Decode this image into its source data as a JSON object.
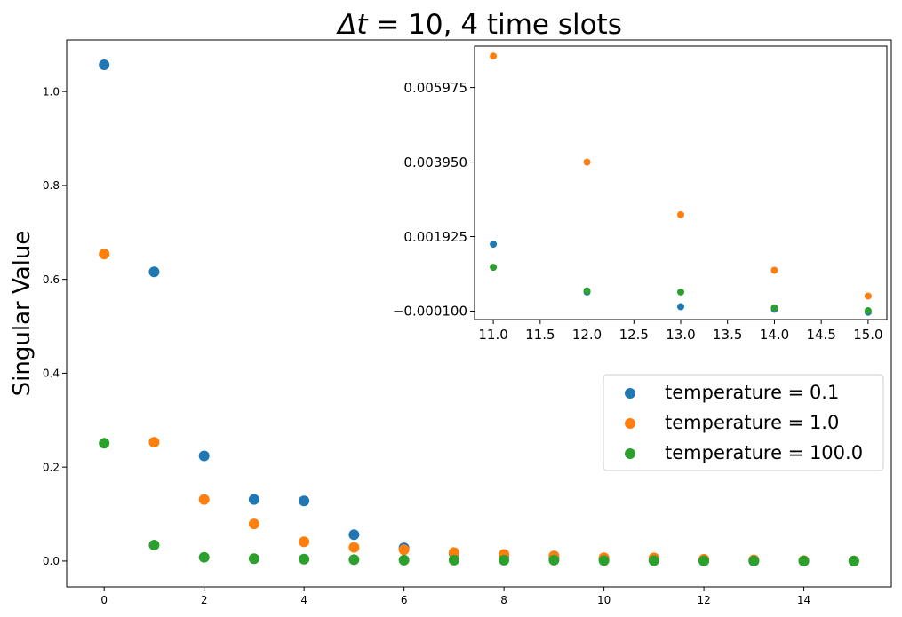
{
  "chart_data": [
    {
      "type": "scatter",
      "title": "Δt = 10, 4 time slots",
      "xlabel": "",
      "ylabel": "Singular Value",
      "xlim": [
        -0.75,
        15.75
      ],
      "ylim": [
        -0.055,
        1.11
      ],
      "x_ticks": [
        0,
        2,
        4,
        6,
        8,
        10,
        12,
        14
      ],
      "y_ticks": [
        0.0,
        0.2,
        0.4,
        0.6,
        0.8,
        1.0
      ],
      "x_tick_labels": [
        "0",
        "2",
        "4",
        "6",
        "8",
        "10",
        "12",
        "14"
      ],
      "y_tick_labels": [
        "0.0",
        "0.2",
        "0.4",
        "0.6",
        "0.8",
        "1.0"
      ],
      "grid": false,
      "legend_position": "center-right",
      "series": [
        {
          "name": "temperature = 0.1",
          "color": "#1f77b4",
          "x": [
            0,
            1,
            2,
            3,
            4,
            5,
            6,
            7,
            8,
            9,
            10,
            11,
            12,
            13,
            14,
            15
          ],
          "y": [
            1.057,
            0.616,
            0.224,
            0.131,
            0.128,
            0.056,
            0.028,
            0.016,
            0.011,
            0.006,
            0.004,
            0.0018,
            0.0004,
            0.0001,
            0.0,
            0.0
          ]
        },
        {
          "name": "temperature = 1.0",
          "color": "#ff7f0e",
          "x": [
            0,
            1,
            2,
            3,
            4,
            5,
            6,
            7,
            8,
            9,
            10,
            11,
            12,
            13,
            14,
            15
          ],
          "y": [
            0.654,
            0.253,
            0.131,
            0.079,
            0.041,
            0.029,
            0.024,
            0.018,
            0.014,
            0.011,
            0.007,
            0.0068,
            0.0039,
            0.0025,
            0.001,
            0.0003
          ]
        },
        {
          "name": "temperature = 100.0",
          "color": "#2ca02c",
          "x": [
            0,
            1,
            2,
            3,
            4,
            5,
            6,
            7,
            8,
            9,
            10,
            11,
            12,
            13,
            14,
            15
          ],
          "y": [
            0.251,
            0.034,
            0.008,
            0.005,
            0.004,
            0.003,
            0.002,
            0.002,
            0.002,
            0.002,
            0.001,
            0.001,
            0.0004,
            0.0004,
            0.0001,
            0.0
          ]
        }
      ]
    },
    {
      "type": "scatter",
      "title": "",
      "xlabel": "",
      "ylabel": "",
      "xlim": [
        10.8,
        15.2
      ],
      "ylim": [
        -0.00033,
        0.0071
      ],
      "x_ticks": [
        11.0,
        11.5,
        12.0,
        12.5,
        13.0,
        13.5,
        14.0,
        14.5,
        15.0
      ],
      "y_ticks": [
        -0.0001,
        0.001925,
        0.00395,
        0.005975
      ],
      "x_tick_labels": [
        "11.0",
        "11.5",
        "12.0",
        "12.5",
        "13.0",
        "13.5",
        "14.0",
        "14.5",
        "15.0"
      ],
      "y_tick_labels": [
        "−0.000100",
        "0.001925",
        "0.003950",
        "0.005975"
      ],
      "grid": false,
      "series": [
        {
          "color": "#1f77b4",
          "x": [
            11,
            12,
            13,
            14,
            15
          ],
          "y": [
            0.00172,
            0.00042,
            2e-05,
            -5e-05,
            -0.00013
          ]
        },
        {
          "color": "#ff7f0e",
          "x": [
            11,
            12,
            13,
            14,
            15
          ],
          "y": [
            0.00683,
            0.00395,
            0.00252,
            0.00101,
            0.00031
          ]
        },
        {
          "color": "#2ca02c",
          "x": [
            11,
            12,
            13,
            14,
            15
          ],
          "y": [
            0.00109,
            0.00045,
            0.00042,
            -1e-05,
            -9e-05
          ]
        }
      ]
    }
  ]
}
